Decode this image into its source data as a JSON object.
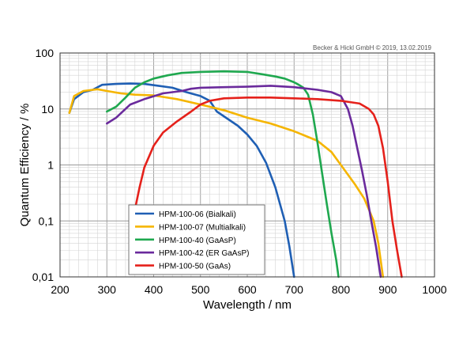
{
  "chart_data": {
    "type": "line",
    "title": "",
    "credit": "Becker & Hickl GmbH © 2019, 13.02.2019",
    "xlabel": "Wavelength / nm",
    "ylabel": "Quantum Efficiency / %",
    "xlim": [
      200,
      1000
    ],
    "ylim": [
      0.01,
      100
    ],
    "yscale": "log",
    "grid": true,
    "x_ticks": [
      200,
      300,
      400,
      500,
      600,
      700,
      800,
      900,
      1000
    ],
    "x_tick_labels": [
      "200",
      "300",
      "400",
      "500",
      "600",
      "700",
      "800",
      "900",
      "1000"
    ],
    "y_ticks": [
      0.01,
      0.1,
      1,
      10,
      100
    ],
    "y_tick_labels": [
      "0,01",
      "0,1",
      "1",
      "10",
      "100"
    ],
    "legend_placement": "lower-left",
    "series": [
      {
        "name": "HPM-100-06 (Bialkali)",
        "color": "#1f5fb4",
        "points": [
          [
            220,
            8.5
          ],
          [
            230,
            15
          ],
          [
            250,
            20
          ],
          [
            270,
            22
          ],
          [
            290,
            27
          ],
          [
            320,
            28
          ],
          [
            350,
            28.5
          ],
          [
            380,
            28
          ],
          [
            410,
            26
          ],
          [
            440,
            24
          ],
          [
            470,
            20
          ],
          [
            500,
            17
          ],
          [
            520,
            14
          ],
          [
            535,
            9
          ],
          [
            560,
            6.5
          ],
          [
            580,
            5
          ],
          [
            600,
            3.5
          ],
          [
            620,
            2.2
          ],
          [
            640,
            1.1
          ],
          [
            660,
            0.4
          ],
          [
            680,
            0.1
          ],
          [
            690,
            0.035
          ],
          [
            700,
            0.01
          ]
        ]
      },
      {
        "name": "HPM-100-07 (Multialkali)",
        "color": "#f5b500",
        "points": [
          [
            220,
            8.5
          ],
          [
            230,
            17
          ],
          [
            250,
            21
          ],
          [
            280,
            22.5
          ],
          [
            300,
            21
          ],
          [
            330,
            19
          ],
          [
            360,
            18
          ],
          [
            400,
            17.5
          ],
          [
            450,
            15
          ],
          [
            500,
            12
          ],
          [
            550,
            9.5
          ],
          [
            600,
            7
          ],
          [
            650,
            5.5
          ],
          [
            700,
            4
          ],
          [
            750,
            2.7
          ],
          [
            780,
            1.7
          ],
          [
            800,
            1
          ],
          [
            830,
            0.45
          ],
          [
            850,
            0.25
          ],
          [
            870,
            0.1
          ],
          [
            880,
            0.04
          ],
          [
            890,
            0.01
          ]
        ]
      },
      {
        "name": "HPM-100-40 (GaAsP)",
        "color": "#1fa84f",
        "points": [
          [
            300,
            9
          ],
          [
            320,
            11
          ],
          [
            340,
            16
          ],
          [
            360,
            24
          ],
          [
            380,
            30
          ],
          [
            400,
            35
          ],
          [
            430,
            40
          ],
          [
            460,
            44
          ],
          [
            500,
            46
          ],
          [
            550,
            47
          ],
          [
            600,
            46
          ],
          [
            630,
            42
          ],
          [
            660,
            38
          ],
          [
            680,
            35
          ],
          [
            700,
            30
          ],
          [
            710,
            27
          ],
          [
            720,
            24
          ],
          [
            730,
            18
          ],
          [
            740,
            8
          ],
          [
            750,
            2.5
          ],
          [
            760,
            0.7
          ],
          [
            770,
            0.2
          ],
          [
            780,
            0.06
          ],
          [
            790,
            0.02
          ],
          [
            795,
            0.01
          ]
        ]
      },
      {
        "name": "HPM-100-42 (ER GaAsP)",
        "color": "#6a2a9c",
        "points": [
          [
            300,
            5.5
          ],
          [
            320,
            7
          ],
          [
            350,
            12
          ],
          [
            380,
            15
          ],
          [
            420,
            19
          ],
          [
            460,
            21
          ],
          [
            480,
            23
          ],
          [
            500,
            24
          ],
          [
            550,
            24.5
          ],
          [
            600,
            25
          ],
          [
            650,
            26
          ],
          [
            700,
            24.5
          ],
          [
            750,
            22
          ],
          [
            780,
            20
          ],
          [
            800,
            17
          ],
          [
            815,
            10
          ],
          [
            825,
            5
          ],
          [
            835,
            2
          ],
          [
            845,
            0.8
          ],
          [
            855,
            0.3
          ],
          [
            865,
            0.1
          ],
          [
            875,
            0.035
          ],
          [
            885,
            0.01
          ]
        ]
      },
      {
        "name": "HPM-100-50 (GaAs)",
        "color": "#e5211b",
        "points": [
          [
            360,
            0.16
          ],
          [
            370,
            0.4
          ],
          [
            380,
            0.9
          ],
          [
            400,
            2.2
          ],
          [
            420,
            3.8
          ],
          [
            450,
            6
          ],
          [
            480,
            9
          ],
          [
            500,
            12
          ],
          [
            520,
            14
          ],
          [
            550,
            15.5
          ],
          [
            600,
            16
          ],
          [
            650,
            16
          ],
          [
            700,
            15.5
          ],
          [
            750,
            15
          ],
          [
            800,
            14
          ],
          [
            840,
            12.5
          ],
          [
            860,
            10
          ],
          [
            870,
            8
          ],
          [
            880,
            5
          ],
          [
            890,
            2
          ],
          [
            900,
            0.5
          ],
          [
            910,
            0.1
          ],
          [
            920,
            0.03
          ],
          [
            930,
            0.01
          ]
        ]
      }
    ]
  }
}
